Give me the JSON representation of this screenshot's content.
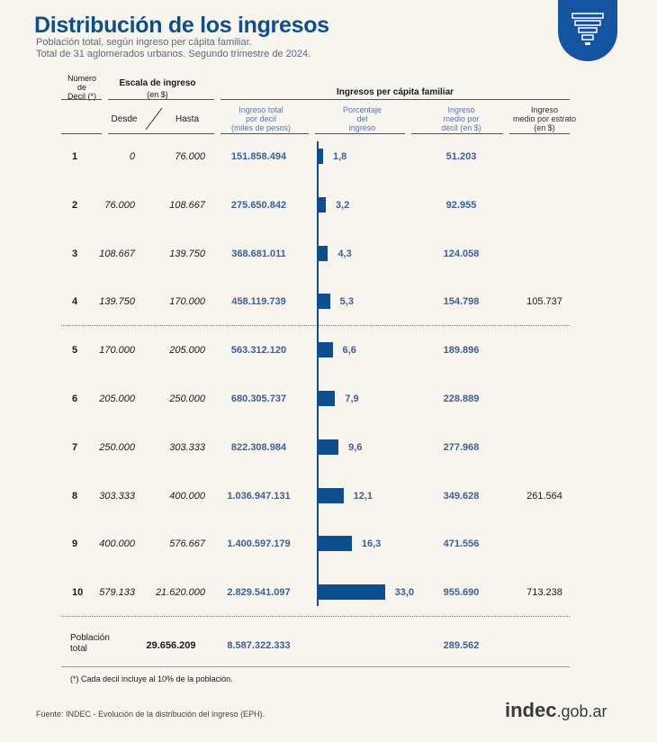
{
  "header": {
    "title": "Distribución de los ingresos",
    "subtitle_1": "Población total, según ingreso per cápita familiar.",
    "subtitle_2": "Total de 31 aglomerados urbanos. Segundo trimestre de 2024."
  },
  "columns": {
    "decil_1": "Número",
    "decil_2": "de",
    "decil_3": "Decil (*)",
    "escala": "Escala de ingreso",
    "escala_unit": "(en $)",
    "desde": "Desde",
    "hasta": "Hasta",
    "ingresos_group": "Ingresos per cápita familiar",
    "total_1": "Ingreso total",
    "total_2": "por decil",
    "total_3": "(miles de pesos)",
    "pct_1": "Porcentaje",
    "pct_2": "del",
    "pct_3": "ingreso",
    "medio_1": "Ingreso",
    "medio_2": "medio por",
    "medio_3": "decil (en $)",
    "estrato_1": "Ingreso",
    "estrato_2": "medio por estrato",
    "estrato_3": "(en $)"
  },
  "rows": [
    {
      "decil": "1",
      "desde": "0",
      "hasta": "76.000",
      "total": "151.858.494",
      "pct_label": "1,8",
      "pct": 1.8,
      "medio": "51.203",
      "estrato": ""
    },
    {
      "decil": "2",
      "desde": "76.000",
      "hasta": "108.667",
      "total": "275.650.842",
      "pct_label": "3,2",
      "pct": 3.2,
      "medio": "92.955",
      "estrato": ""
    },
    {
      "decil": "3",
      "desde": "108.667",
      "hasta": "139.750",
      "total": "368.681.011",
      "pct_label": "4,3",
      "pct": 4.3,
      "medio": "124.058",
      "estrato": ""
    },
    {
      "decil": "4",
      "desde": "139.750",
      "hasta": "170.000",
      "total": "458.119.739",
      "pct_label": "5,3",
      "pct": 5.3,
      "medio": "154.798",
      "estrato": "105.737"
    },
    {
      "decil": "5",
      "desde": "170.000",
      "hasta": "205.000",
      "total": "563.312.120",
      "pct_label": "6,6",
      "pct": 6.6,
      "medio": "189.896",
      "estrato": ""
    },
    {
      "decil": "6",
      "desde": "205.000",
      "hasta": "250.000",
      "total": "680.305.737",
      "pct_label": "7,9",
      "pct": 7.9,
      "medio": "228.889",
      "estrato": ""
    },
    {
      "decil": "7",
      "desde": "250.000",
      "hasta": "303.333",
      "total": "822.308.984",
      "pct_label": "9,6",
      "pct": 9.6,
      "medio": "277.968",
      "estrato": ""
    },
    {
      "decil": "8",
      "desde": "303.333",
      "hasta": "400.000",
      "total": "1.036.947.131",
      "pct_label": "12,1",
      "pct": 12.1,
      "medio": "349.628",
      "estrato": "261.564"
    },
    {
      "decil": "9",
      "desde": "400.000",
      "hasta": "576.667",
      "total": "1.400.597.179",
      "pct_label": "16,3",
      "pct": 16.3,
      "medio": "471.556",
      "estrato": ""
    },
    {
      "decil": "10",
      "desde": "579.133",
      "hasta": "21.620.000",
      "total": "2.829.541.097",
      "pct_label": "33,0",
      "pct": 33.0,
      "medio": "955.690",
      "estrato": "713.238"
    }
  ],
  "totals": {
    "label_1": "Población",
    "label_2": "total",
    "poblacion": "29.656.209",
    "ingreso_total": "8.587.322.333",
    "medio": "289.562"
  },
  "footnote": "(*) Cada decil incluye al 10% de la población.",
  "source": "Fuente: INDEC - Evolución de la distribución del ingreso (EPH).",
  "brand": {
    "main": "indec",
    "suffix": ".gob.ar"
  },
  "colors": {
    "title": "#0d4f8c",
    "bar": "#0d4f8c",
    "value": "#3b5f9a",
    "badge": "#1554a0"
  },
  "icons": [
    "funnel-chart-icon"
  ]
}
